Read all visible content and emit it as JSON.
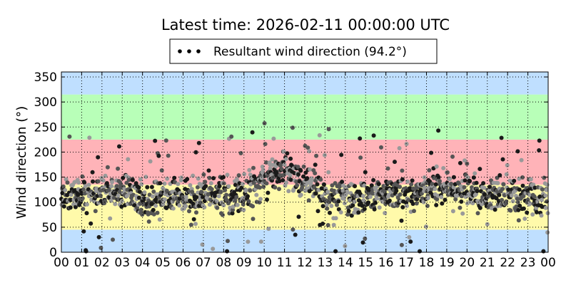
{
  "chart_data": {
    "type": "scatter",
    "title": "Latest time: 2026-02-11 00:00:00 UTC",
    "ylabel": "Wind direction (°)",
    "xlabel": "",
    "ylim": [
      0,
      360
    ],
    "yticks": [
      0,
      50,
      100,
      150,
      200,
      250,
      300,
      350
    ],
    "xlim": [
      0,
      24
    ],
    "xtick_labels": [
      "00",
      "01",
      "02",
      "03",
      "04",
      "05",
      "06",
      "07",
      "08",
      "09",
      "10",
      "11",
      "12",
      "13",
      "14",
      "15",
      "16",
      "17",
      "18",
      "19",
      "20",
      "21",
      "22",
      "23",
      "00"
    ],
    "grid": true,
    "legend": {
      "label": "Resultant wind direction (94.2°)",
      "placement": "top-center"
    },
    "bands": [
      {
        "from": 0,
        "to": 45,
        "color": "#bfdfff"
      },
      {
        "from": 45,
        "to": 135,
        "color": "#fffaaa"
      },
      {
        "from": 135,
        "to": 225,
        "color": "#ffb3b8"
      },
      {
        "from": 225,
        "to": 315,
        "color": "#b8ffb8"
      },
      {
        "from": 315,
        "to": 360,
        "color": "#bfdfff"
      }
    ],
    "series": [
      {
        "name": "Resultant wind direction (94.2°)",
        "hourly_trend": [
          {
            "hour": 0,
            "direction": 118
          },
          {
            "hour": 1,
            "direction": 110
          },
          {
            "hour": 2,
            "direction": 120
          },
          {
            "hour": 3,
            "direction": 125
          },
          {
            "hour": 4,
            "direction": 105
          },
          {
            "hour": 5,
            "direction": 110
          },
          {
            "hour": 6,
            "direction": 108
          },
          {
            "hour": 7,
            "direction": 118
          },
          {
            "hour": 8,
            "direction": 115
          },
          {
            "hour": 9,
            "direction": 120
          },
          {
            "hour": 10,
            "direction": 150
          },
          {
            "hour": 11,
            "direction": 165
          },
          {
            "hour": 12,
            "direction": 140
          },
          {
            "hour": 13,
            "direction": 120
          },
          {
            "hour": 14,
            "direction": 105
          },
          {
            "hour": 15,
            "direction": 110
          },
          {
            "hour": 16,
            "direction": 120
          },
          {
            "hour": 17,
            "direction": 115
          },
          {
            "hour": 18,
            "direction": 125
          },
          {
            "hour": 19,
            "direction": 130
          },
          {
            "hour": 20,
            "direction": 120
          },
          {
            "hour": 21,
            "direction": 112
          },
          {
            "hour": 22,
            "direction": 110
          },
          {
            "hour": 23,
            "direction": 112
          },
          {
            "hour": 24,
            "direction": 108
          }
        ]
      }
    ]
  },
  "colors": {
    "marker_dark": "#1a1a1a",
    "marker_mid": "#555555",
    "marker_light": "#999999",
    "grid": "#000000"
  }
}
